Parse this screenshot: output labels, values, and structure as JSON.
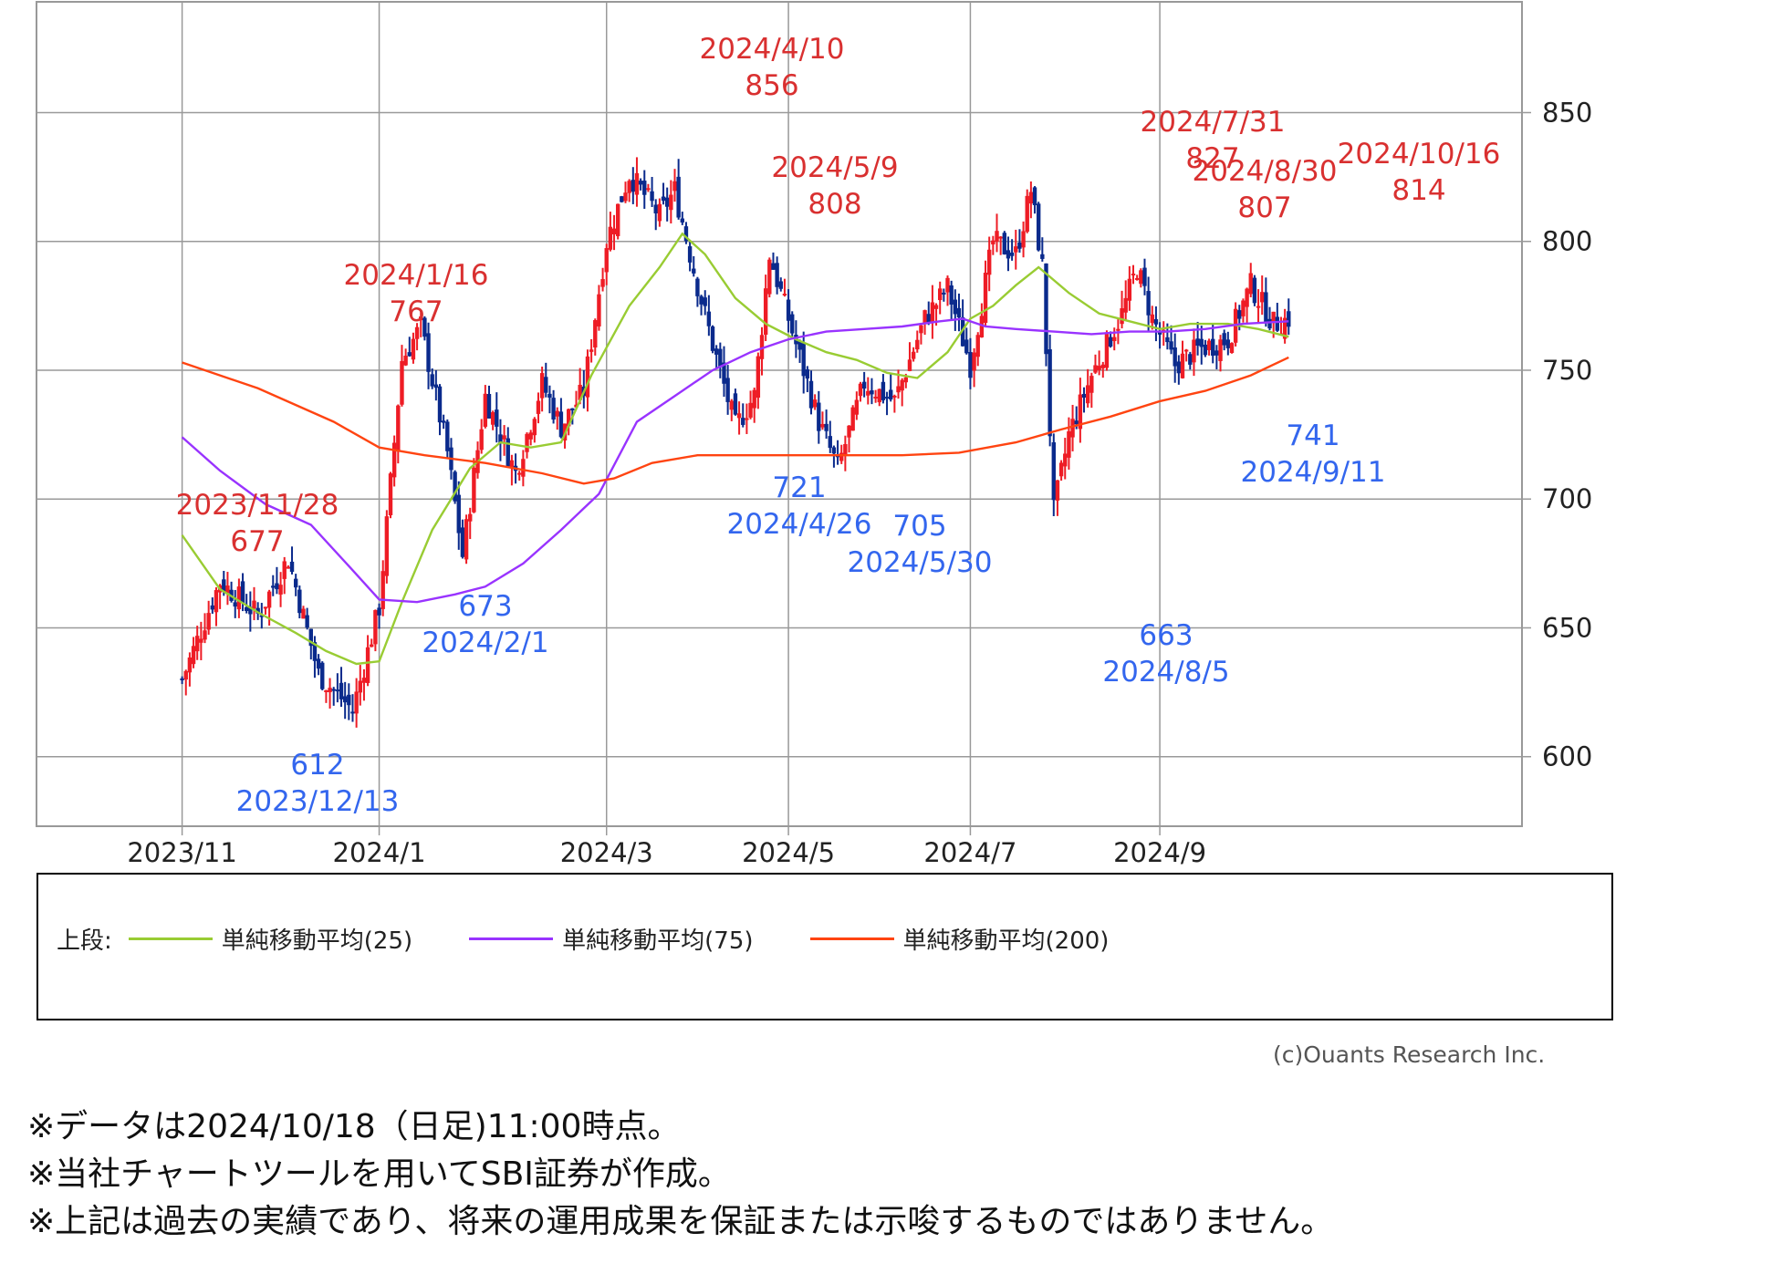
{
  "chart_data": {
    "type": "candlestick",
    "yaxis": {
      "ticks": [
        600,
        650,
        700,
        750,
        800,
        850
      ],
      "ylim": [
        573,
        893
      ]
    },
    "xaxis": {
      "tick_labels": [
        "2023/11",
        "2024/1",
        "2024/3",
        "2024/5",
        "2024/7",
        "2024/9"
      ]
    },
    "grid": true,
    "price_keypoints": [
      {
        "t": 0,
        "v": 630
      },
      {
        "t": 10,
        "v": 668
      },
      {
        "t": 20,
        "v": 655
      },
      {
        "t": 28,
        "v": 677
      },
      {
        "t": 36,
        "v": 632
      },
      {
        "t": 45,
        "v": 618
      },
      {
        "t": 52,
        "v": 658
      },
      {
        "t": 58,
        "v": 754
      },
      {
        "t": 63,
        "v": 767
      },
      {
        "t": 70,
        "v": 718
      },
      {
        "t": 74,
        "v": 678
      },
      {
        "t": 80,
        "v": 740
      },
      {
        "t": 88,
        "v": 710
      },
      {
        "t": 95,
        "v": 745
      },
      {
        "t": 100,
        "v": 728
      },
      {
        "t": 106,
        "v": 742
      },
      {
        "t": 112,
        "v": 800
      },
      {
        "t": 118,
        "v": 826
      },
      {
        "t": 126,
        "v": 810
      },
      {
        "t": 130,
        "v": 820
      },
      {
        "t": 136,
        "v": 783
      },
      {
        "t": 140,
        "v": 760
      },
      {
        "t": 146,
        "v": 728
      },
      {
        "t": 151,
        "v": 740
      },
      {
        "t": 155,
        "v": 795
      },
      {
        "t": 160,
        "v": 770
      },
      {
        "t": 168,
        "v": 730
      },
      {
        "t": 173,
        "v": 712
      },
      {
        "t": 180,
        "v": 745
      },
      {
        "t": 188,
        "v": 738
      },
      {
        "t": 196,
        "v": 770
      },
      {
        "t": 202,
        "v": 782
      },
      {
        "t": 208,
        "v": 752
      },
      {
        "t": 214,
        "v": 800
      },
      {
        "t": 220,
        "v": 795
      },
      {
        "t": 224,
        "v": 820
      },
      {
        "t": 227,
        "v": 790
      },
      {
        "t": 230,
        "v": 695
      },
      {
        "t": 234,
        "v": 725
      },
      {
        "t": 240,
        "v": 748
      },
      {
        "t": 248,
        "v": 772
      },
      {
        "t": 252,
        "v": 790
      },
      {
        "t": 256,
        "v": 770
      },
      {
        "t": 262,
        "v": 752
      },
      {
        "t": 268,
        "v": 758
      },
      {
        "t": 276,
        "v": 762
      },
      {
        "t": 282,
        "v": 783
      },
      {
        "t": 288,
        "v": 768
      },
      {
        "t": 292,
        "v": 770
      }
    ],
    "series": [
      {
        "name": "単純移動平均(25)",
        "color": "#99cc33",
        "values": [
          {
            "t": 0,
            "v": 686
          },
          {
            "t": 10,
            "v": 665
          },
          {
            "t": 20,
            "v": 656
          },
          {
            "t": 30,
            "v": 648
          },
          {
            "t": 38,
            "v": 641
          },
          {
            "t": 46,
            "v": 636
          },
          {
            "t": 52,
            "v": 637
          },
          {
            "t": 58,
            "v": 660
          },
          {
            "t": 66,
            "v": 688
          },
          {
            "t": 76,
            "v": 712
          },
          {
            "t": 84,
            "v": 722
          },
          {
            "t": 92,
            "v": 720
          },
          {
            "t": 100,
            "v": 722
          },
          {
            "t": 108,
            "v": 748
          },
          {
            "t": 118,
            "v": 775
          },
          {
            "t": 126,
            "v": 790
          },
          {
            "t": 132,
            "v": 803
          },
          {
            "t": 138,
            "v": 795
          },
          {
            "t": 146,
            "v": 778
          },
          {
            "t": 154,
            "v": 768
          },
          {
            "t": 162,
            "v": 762
          },
          {
            "t": 170,
            "v": 757
          },
          {
            "t": 178,
            "v": 754
          },
          {
            "t": 186,
            "v": 749
          },
          {
            "t": 194,
            "v": 747
          },
          {
            "t": 202,
            "v": 757
          },
          {
            "t": 208,
            "v": 770
          },
          {
            "t": 214,
            "v": 775
          },
          {
            "t": 220,
            "v": 783
          },
          {
            "t": 226,
            "v": 790
          },
          {
            "t": 234,
            "v": 780
          },
          {
            "t": 242,
            "v": 772
          },
          {
            "t": 250,
            "v": 769
          },
          {
            "t": 258,
            "v": 766
          },
          {
            "t": 266,
            "v": 768
          },
          {
            "t": 276,
            "v": 768
          },
          {
            "t": 284,
            "v": 766
          },
          {
            "t": 292,
            "v": 763
          }
        ]
      },
      {
        "name": "単純移動平均(75)",
        "color": "#9933ff",
        "values": [
          {
            "t": 0,
            "v": 724
          },
          {
            "t": 10,
            "v": 711
          },
          {
            "t": 22,
            "v": 698
          },
          {
            "t": 34,
            "v": 690
          },
          {
            "t": 44,
            "v": 674
          },
          {
            "t": 52,
            "v": 661
          },
          {
            "t": 62,
            "v": 660
          },
          {
            "t": 72,
            "v": 663
          },
          {
            "t": 80,
            "v": 666
          },
          {
            "t": 90,
            "v": 675
          },
          {
            "t": 100,
            "v": 688
          },
          {
            "t": 110,
            "v": 702
          },
          {
            "t": 120,
            "v": 730
          },
          {
            "t": 130,
            "v": 740
          },
          {
            "t": 140,
            "v": 750
          },
          {
            "t": 150,
            "v": 757
          },
          {
            "t": 160,
            "v": 762
          },
          {
            "t": 170,
            "v": 765
          },
          {
            "t": 180,
            "v": 766
          },
          {
            "t": 190,
            "v": 767
          },
          {
            "t": 200,
            "v": 769
          },
          {
            "t": 206,
            "v": 770
          },
          {
            "t": 212,
            "v": 767
          },
          {
            "t": 220,
            "v": 766
          },
          {
            "t": 230,
            "v": 765
          },
          {
            "t": 240,
            "v": 764
          },
          {
            "t": 250,
            "v": 765
          },
          {
            "t": 260,
            "v": 765
          },
          {
            "t": 270,
            "v": 766
          },
          {
            "t": 280,
            "v": 768
          },
          {
            "t": 292,
            "v": 769
          }
        ]
      },
      {
        "name": "単純移動平均(200)",
        "color": "#ff4411",
        "values": [
          {
            "t": 0,
            "v": 753
          },
          {
            "t": 20,
            "v": 743
          },
          {
            "t": 40,
            "v": 730
          },
          {
            "t": 52,
            "v": 720
          },
          {
            "t": 64,
            "v": 717
          },
          {
            "t": 80,
            "v": 714
          },
          {
            "t": 95,
            "v": 710
          },
          {
            "t": 106,
            "v": 706
          },
          {
            "t": 114,
            "v": 708
          },
          {
            "t": 124,
            "v": 714
          },
          {
            "t": 136,
            "v": 717
          },
          {
            "t": 150,
            "v": 717
          },
          {
            "t": 170,
            "v": 717
          },
          {
            "t": 190,
            "v": 717
          },
          {
            "t": 205,
            "v": 718
          },
          {
            "t": 220,
            "v": 722
          },
          {
            "t": 232,
            "v": 727
          },
          {
            "t": 245,
            "v": 732
          },
          {
            "t": 258,
            "v": 738
          },
          {
            "t": 270,
            "v": 742
          },
          {
            "t": 282,
            "v": 748
          },
          {
            "t": 292,
            "v": 755
          }
        ]
      }
    ],
    "annotations": [
      {
        "type": "high",
        "date": "2024/4/10",
        "value": 856
      },
      {
        "type": "high",
        "date": "2024/7/31",
        "value": 827
      },
      {
        "type": "high",
        "date": "2024/5/9",
        "value": 808
      },
      {
        "type": "high",
        "date": "2024/8/30",
        "value": 807
      },
      {
        "type": "high",
        "date": "2024/10/16",
        "value": 814
      },
      {
        "type": "high",
        "date": "2024/1/16",
        "value": 767
      },
      {
        "type": "high",
        "date": "2023/11/28",
        "value": 677
      },
      {
        "type": "low",
        "date": "2024/2/1",
        "value": 673
      },
      {
        "type": "low",
        "date": "2024/4/26",
        "value": 721
      },
      {
        "type": "low",
        "date": "2024/5/30",
        "value": 705
      },
      {
        "type": "low",
        "date": "2024/8/5",
        "value": 663
      },
      {
        "type": "low",
        "date": "2024/9/11",
        "value": 741
      },
      {
        "type": "low",
        "date": "2023/12/13",
        "value": 612
      }
    ]
  },
  "legend": {
    "prefix": "上段:",
    "items": [
      {
        "label": "単純移動平均(25)",
        "color": "#99cc33"
      },
      {
        "label": "単純移動平均(75)",
        "color": "#9933ff"
      },
      {
        "label": "単純移動平均(200)",
        "color": "#ff4411"
      }
    ]
  },
  "copyright": "(c)Ouants Research Inc.",
  "footnotes": [
    "※データは2024/10/18（日足)11:00時点。",
    "※当社チャートツールを用いてSBI証券が作成。",
    "※上記は過去の実績であり、将来の運用成果を保証または示唆するものではありません。"
  ],
  "colors": {
    "up": "#ee1c25",
    "down": "#0a2a8c",
    "high_label": "#d93030",
    "low_label": "#3366ee",
    "grid": "#999999"
  }
}
